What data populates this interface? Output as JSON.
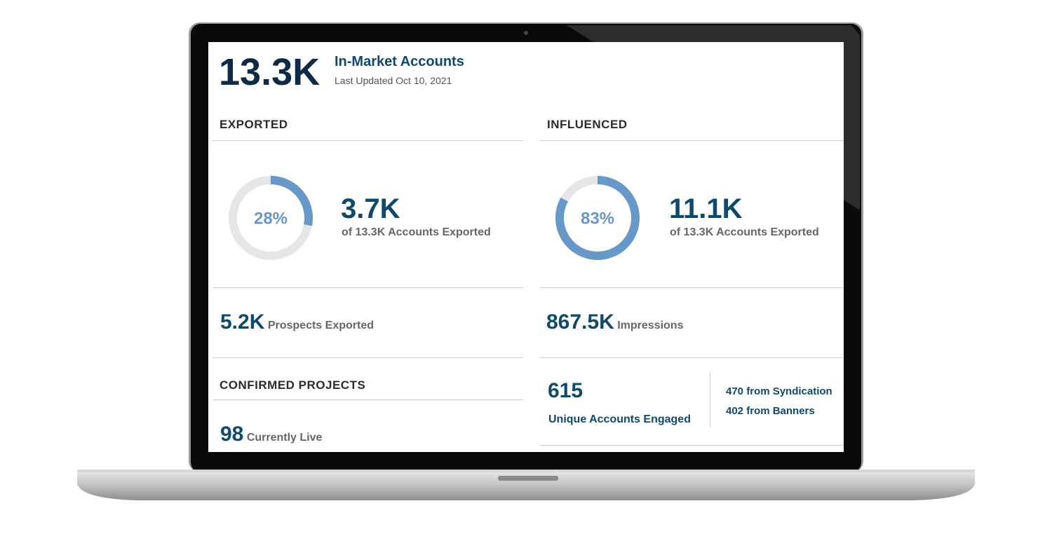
{
  "header": {
    "value": "13.3K",
    "title": "In-Market Accounts",
    "updated": "Last Updated Oct 10, 2021"
  },
  "exported": {
    "heading": "EXPORTED",
    "gauge": {
      "value": 28,
      "label": "28%"
    },
    "value": "3.7K",
    "caption": "of 13.3K Accounts Exported",
    "prospects": {
      "value": "5.2K",
      "label": "Prospects Exported"
    }
  },
  "influenced": {
    "heading": "INFLUENCED",
    "gauge": {
      "value": 83,
      "label": "83%"
    },
    "value": "11.1K",
    "caption": "of 13.3K Accounts Exported",
    "impressions": {
      "value": "867.5K",
      "label": "Impressions"
    },
    "engaged": {
      "value": "615",
      "label": "Unique Accounts Engaged",
      "breakdown": [
        "470 from Syndication",
        "402 from Banners"
      ]
    }
  },
  "confirmed_projects": {
    "heading": "CONFIRMED PROJECTS",
    "value": "98",
    "label": "Currently Live"
  }
}
